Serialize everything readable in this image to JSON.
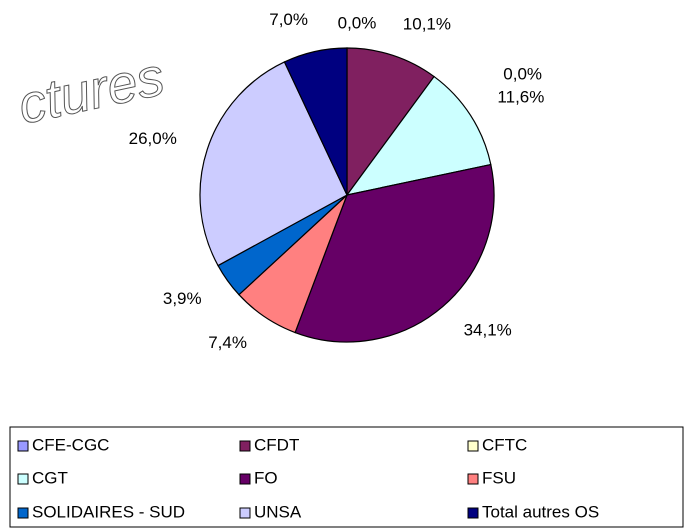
{
  "watermark": "ctures",
  "chart_data": {
    "type": "pie",
    "categories": [
      "CFE-CGC",
      "CFDT",
      "CFTC",
      "CGT",
      "FO",
      "FSU",
      "SOLIDAIRES - SUD",
      "UNSA",
      "Total autres OS"
    ],
    "values": [
      0.0,
      10.1,
      0.0,
      11.6,
      34.1,
      7.4,
      3.9,
      26.0,
      7.0
    ],
    "value_labels": [
      "0,0%",
      "10,1%",
      "0,0%",
      "11,6%",
      "34,1%",
      "7,4%",
      "3,9%",
      "26,0%",
      "7,0%"
    ],
    "colors": [
      "#9999ff",
      "#802060",
      "#ffffcc",
      "#ccffff",
      "#660066",
      "#ff8080",
      "#0066cc",
      "#ccccff",
      "#000080"
    ],
    "legend": "bottom"
  }
}
